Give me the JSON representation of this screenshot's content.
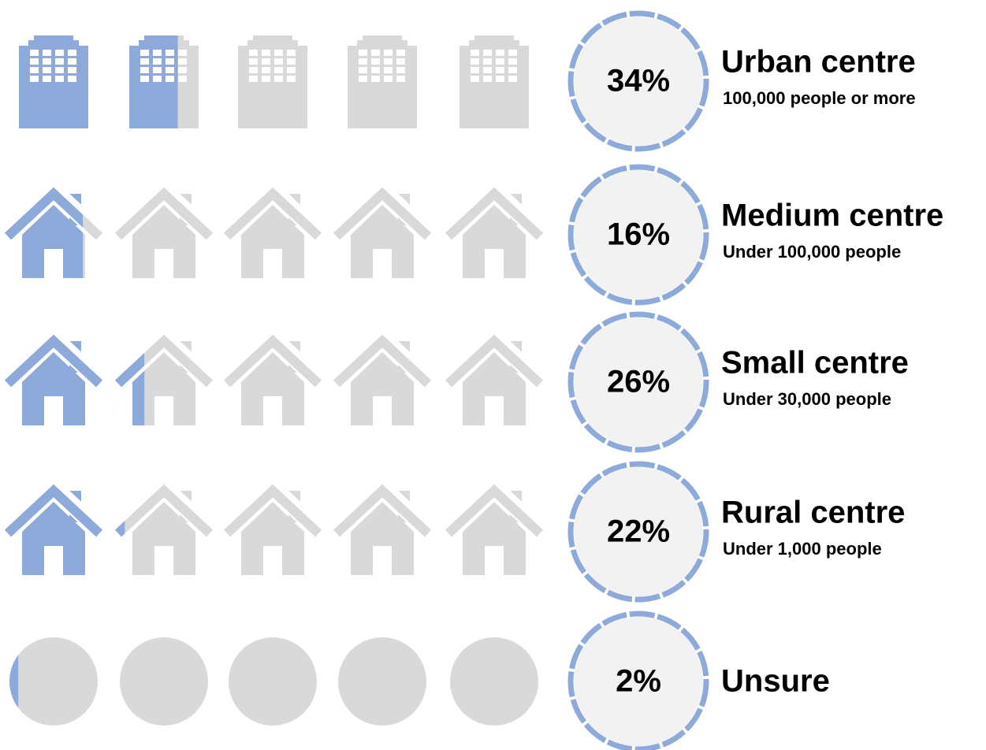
{
  "chart_data": {
    "type": "pictogram",
    "categories": [
      "Urban centre",
      "Medium centre",
      "Small centre",
      "Rural centre",
      "Unsure"
    ],
    "descriptions": [
      "100,000 people or more",
      "Under 100,000 people",
      "Under 30,000 people",
      "Under 1,000 people",
      null
    ],
    "values": [
      34,
      16,
      26,
      22,
      2
    ],
    "value_labels": [
      "34%",
      "16%",
      "26%",
      "22%",
      "2%"
    ],
    "xlim": [
      0,
      100
    ],
    "color": "#8eaadb",
    "empty_color": "#d9d9d9"
  }
}
